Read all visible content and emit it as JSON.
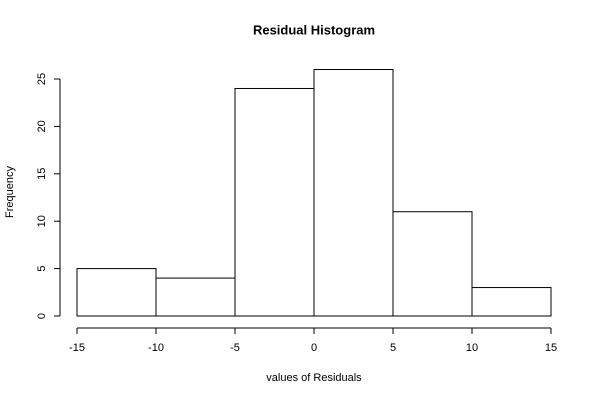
{
  "chart_data": {
    "type": "histogram",
    "title": "Residual Histogram",
    "xlabel": "values of Residuals",
    "ylabel": "Frequency",
    "bins": [
      -15,
      -10,
      -5,
      0,
      5,
      10,
      15
    ],
    "values": [
      5,
      4,
      24,
      26,
      11,
      3
    ],
    "xlim": [
      -15,
      15
    ],
    "ylim": [
      0,
      25
    ],
    "xticks": [
      -15,
      -10,
      -5,
      0,
      5,
      10,
      15
    ],
    "yticks": [
      0,
      5,
      10,
      15,
      20,
      25
    ],
    "color": "#ffffff"
  }
}
